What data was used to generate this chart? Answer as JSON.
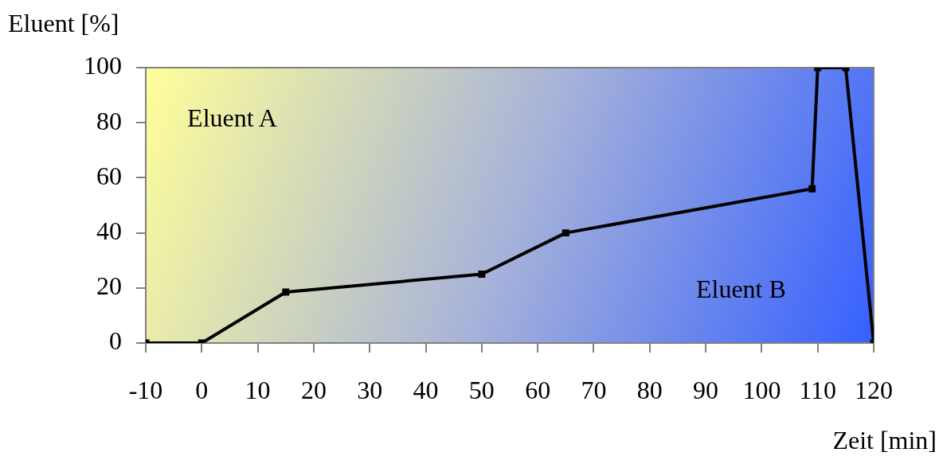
{
  "chart_data": {
    "type": "line",
    "xlabel": "Zeit [min]",
    "ylabel": "Eluent [%]",
    "x": [
      -10,
      0,
      15,
      50,
      65,
      109,
      110,
      115,
      120
    ],
    "values": [
      0,
      0,
      18.5,
      25,
      40,
      56,
      100,
      100,
      0
    ],
    "color": "#000000",
    "marker": "square",
    "line_style": "solid",
    "legend": false,
    "xlim": [
      -10,
      120
    ],
    "xticks": [
      -10,
      0,
      10,
      20,
      30,
      40,
      50,
      60,
      70,
      80,
      90,
      100,
      110,
      120
    ],
    "ylim": [
      0,
      100
    ],
    "yticks": [
      0,
      20,
      40,
      60,
      80,
      100
    ],
    "annotations": [
      "Eluent A",
      "Eluent B"
    ]
  }
}
